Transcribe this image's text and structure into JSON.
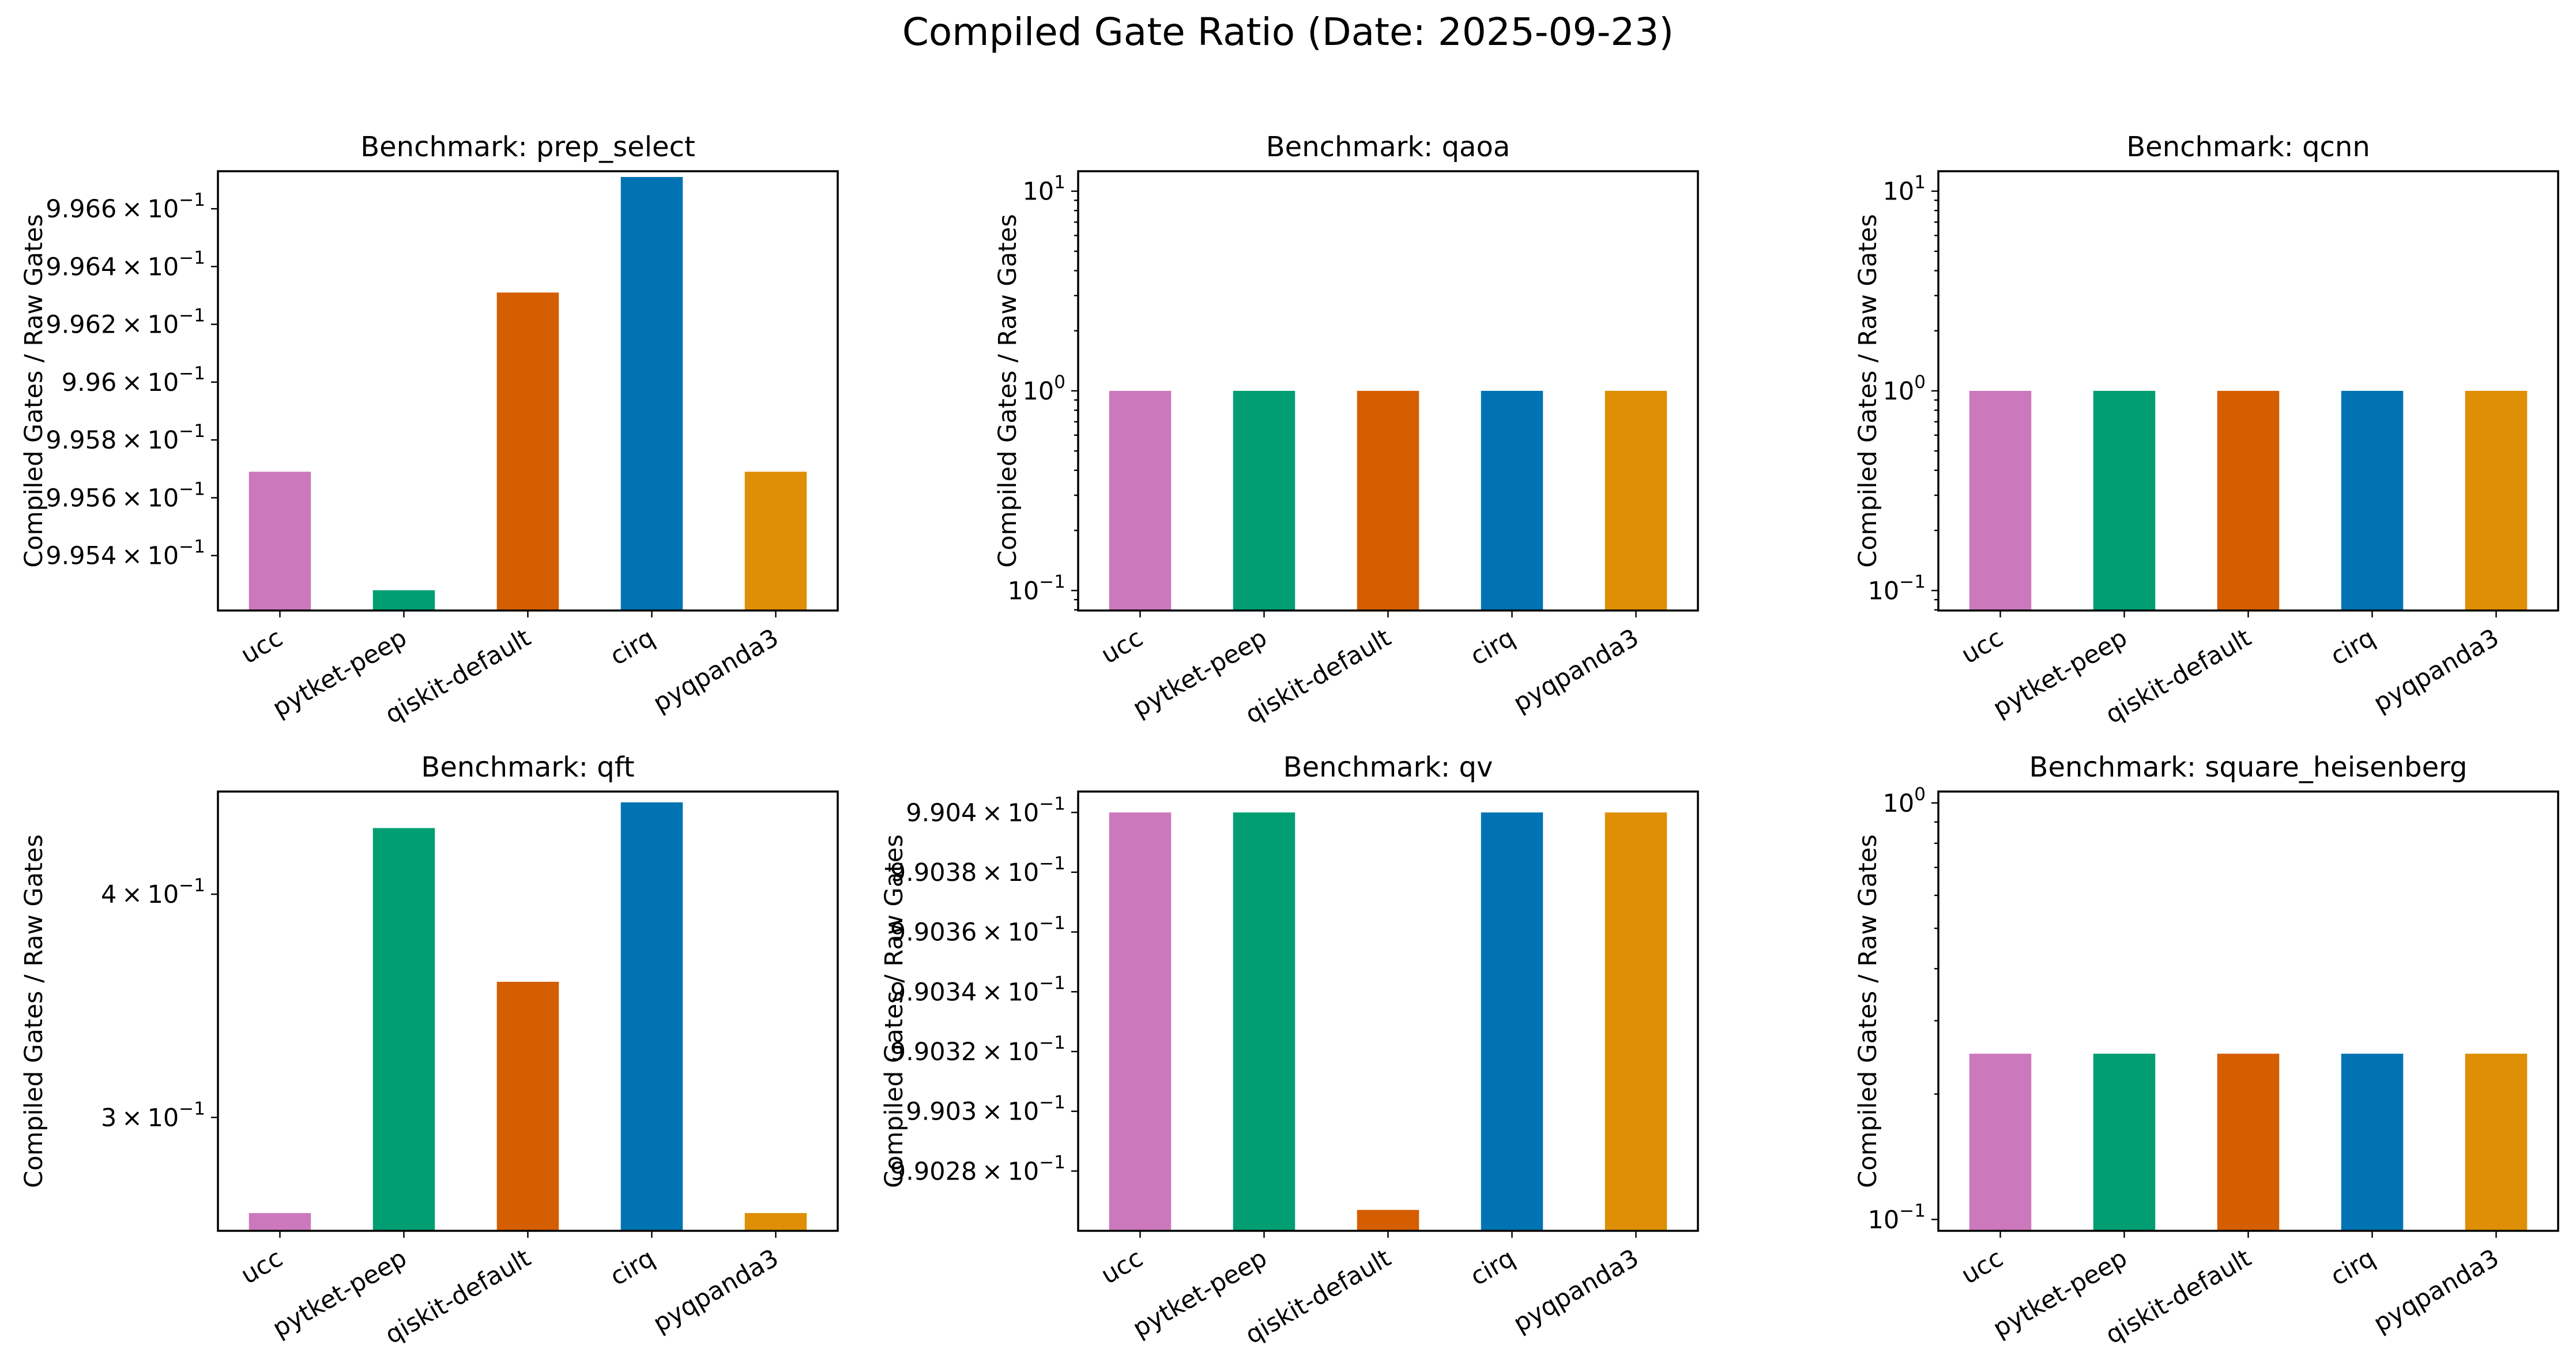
{
  "figure": {
    "title": "Compiled Gate Ratio (Date: 2025-09-23)"
  },
  "chart_data": [
    {
      "type": "bar",
      "title": "Benchmark: prep_select",
      "ylabel": "Compiled Gates / Raw Gates",
      "yscale": "log",
      "categories": [
        "ucc",
        "pytket-peep",
        "qiskit-default",
        "cirq",
        "pyqpanda3"
      ],
      "values": [
        0.99569,
        0.99528,
        0.99631,
        0.99671,
        0.99569
      ],
      "ylim": [
        0.99521,
        0.99673
      ],
      "yticks": [
        {
          "value": 0.9954,
          "mantissa": "9.954",
          "base": "10",
          "exp": "−1"
        },
        {
          "value": 0.9956,
          "mantissa": "9.956",
          "base": "10",
          "exp": "−1"
        },
        {
          "value": 0.9958,
          "mantissa": "9.958",
          "base": "10",
          "exp": "−1"
        },
        {
          "value": 0.996,
          "mantissa": "9.96",
          "base": "10",
          "exp": "−1"
        },
        {
          "value": 0.9962,
          "mantissa": "9.962",
          "base": "10",
          "exp": "−1"
        },
        {
          "value": 0.9964,
          "mantissa": "9.964",
          "base": "10",
          "exp": "−1"
        },
        {
          "value": 0.9966,
          "mantissa": "9.966",
          "base": "10",
          "exp": "−1"
        }
      ],
      "minor_ticks": [],
      "colors": [
        "#cc78bc",
        "#029e73",
        "#d55e00",
        "#0173b2",
        "#de8f05"
      ]
    },
    {
      "type": "bar",
      "title": "Benchmark: qaoa",
      "ylabel": "Compiled Gates / Raw Gates",
      "yscale": "log",
      "categories": [
        "ucc",
        "pytket-peep",
        "qiskit-default",
        "cirq",
        "pyqpanda3"
      ],
      "values": [
        1.0,
        1.0,
        1.0,
        1.0,
        1.0
      ],
      "ylim": [
        0.0794,
        12.59
      ],
      "yticks": [
        {
          "value": 0.1,
          "mantissa": "",
          "base": "10",
          "exp": "−1"
        },
        {
          "value": 1,
          "mantissa": "",
          "base": "10",
          "exp": "0"
        },
        {
          "value": 10,
          "mantissa": "",
          "base": "10",
          "exp": "1"
        }
      ],
      "minor_ticks": [
        0.08,
        0.09,
        0.2,
        0.3,
        0.4,
        0.5,
        0.6,
        0.7,
        0.8,
        0.9,
        2,
        3,
        4,
        5,
        6,
        7,
        8,
        9
      ],
      "colors": [
        "#cc78bc",
        "#029e73",
        "#d55e00",
        "#0173b2",
        "#de8f05"
      ]
    },
    {
      "type": "bar",
      "title": "Benchmark: qcnn",
      "ylabel": "Compiled Gates / Raw Gates",
      "yscale": "log",
      "categories": [
        "ucc",
        "pytket-peep",
        "qiskit-default",
        "cirq",
        "pyqpanda3"
      ],
      "values": [
        1.0,
        1.0,
        1.0,
        1.0,
        1.0
      ],
      "ylim": [
        0.0794,
        12.59
      ],
      "yticks": [
        {
          "value": 0.1,
          "mantissa": "",
          "base": "10",
          "exp": "−1"
        },
        {
          "value": 1,
          "mantissa": "",
          "base": "10",
          "exp": "0"
        },
        {
          "value": 10,
          "mantissa": "",
          "base": "10",
          "exp": "1"
        }
      ],
      "minor_ticks": [
        0.08,
        0.09,
        0.2,
        0.3,
        0.4,
        0.5,
        0.6,
        0.7,
        0.8,
        0.9,
        2,
        3,
        4,
        5,
        6,
        7,
        8,
        9
      ],
      "colors": [
        "#cc78bc",
        "#029e73",
        "#d55e00",
        "#0173b2",
        "#de8f05"
      ]
    },
    {
      "type": "bar",
      "title": "Benchmark: qft",
      "ylabel": "Compiled Gates / Raw Gates",
      "yscale": "log",
      "categories": [
        "ucc",
        "pytket-peep",
        "qiskit-default",
        "cirq",
        "pyqpanda3"
      ],
      "values": [
        0.2652,
        0.4356,
        0.3573,
        0.4503,
        0.2652
      ],
      "ylim": [
        0.2592,
        0.4566
      ],
      "yticks": [
        {
          "value": 0.3,
          "mantissa": "3",
          "base": "10",
          "exp": "−1"
        },
        {
          "value": 0.4,
          "mantissa": "4",
          "base": "10",
          "exp": "−1"
        }
      ],
      "minor_ticks": [],
      "colors": [
        "#cc78bc",
        "#029e73",
        "#d55e00",
        "#0173b2",
        "#de8f05"
      ]
    },
    {
      "type": "bar",
      "title": "Benchmark: qv",
      "ylabel": "Compiled Gates / Raw Gates",
      "yscale": "log",
      "categories": [
        "ucc",
        "pytket-peep",
        "qiskit-default",
        "cirq",
        "pyqpanda3"
      ],
      "values": [
        0.9904,
        0.9904,
        0.990267,
        0.9904,
        0.9904
      ],
      "ylim": [
        0.99026,
        0.990407
      ],
      "yticks": [
        {
          "value": 0.99028,
          "mantissa": "9.9028",
          "base": "10",
          "exp": "−1"
        },
        {
          "value": 0.9903,
          "mantissa": "9.903",
          "base": "10",
          "exp": "−1"
        },
        {
          "value": 0.99032,
          "mantissa": "9.9032",
          "base": "10",
          "exp": "−1"
        },
        {
          "value": 0.99034,
          "mantissa": "9.9034",
          "base": "10",
          "exp": "−1"
        },
        {
          "value": 0.99036,
          "mantissa": "9.9036",
          "base": "10",
          "exp": "−1"
        },
        {
          "value": 0.99038,
          "mantissa": "9.9038",
          "base": "10",
          "exp": "−1"
        },
        {
          "value": 0.9904,
          "mantissa": "9.904",
          "base": "10",
          "exp": "−1"
        }
      ],
      "minor_ticks": [],
      "colors": [
        "#cc78bc",
        "#029e73",
        "#d55e00",
        "#0173b2",
        "#de8f05"
      ]
    },
    {
      "type": "bar",
      "title": "Benchmark: square_heisenberg",
      "ylabel": "Compiled Gates / Raw Gates",
      "yscale": "log",
      "categories": [
        "ucc",
        "pytket-peep",
        "qiskit-default",
        "cirq",
        "pyqpanda3"
      ],
      "values": [
        0.25,
        0.25,
        0.25,
        0.25,
        0.25
      ],
      "ylim": [
        0.0939,
        1.065
      ],
      "yticks": [
        {
          "value": 0.1,
          "mantissa": "",
          "base": "10",
          "exp": "−1"
        },
        {
          "value": 1,
          "mantissa": "",
          "base": "10",
          "exp": "0"
        }
      ],
      "minor_ticks": [
        0.2,
        0.3,
        0.4,
        0.5,
        0.6,
        0.7,
        0.8,
        0.9
      ],
      "colors": [
        "#cc78bc",
        "#029e73",
        "#d55e00",
        "#0173b2",
        "#de8f05"
      ]
    }
  ]
}
